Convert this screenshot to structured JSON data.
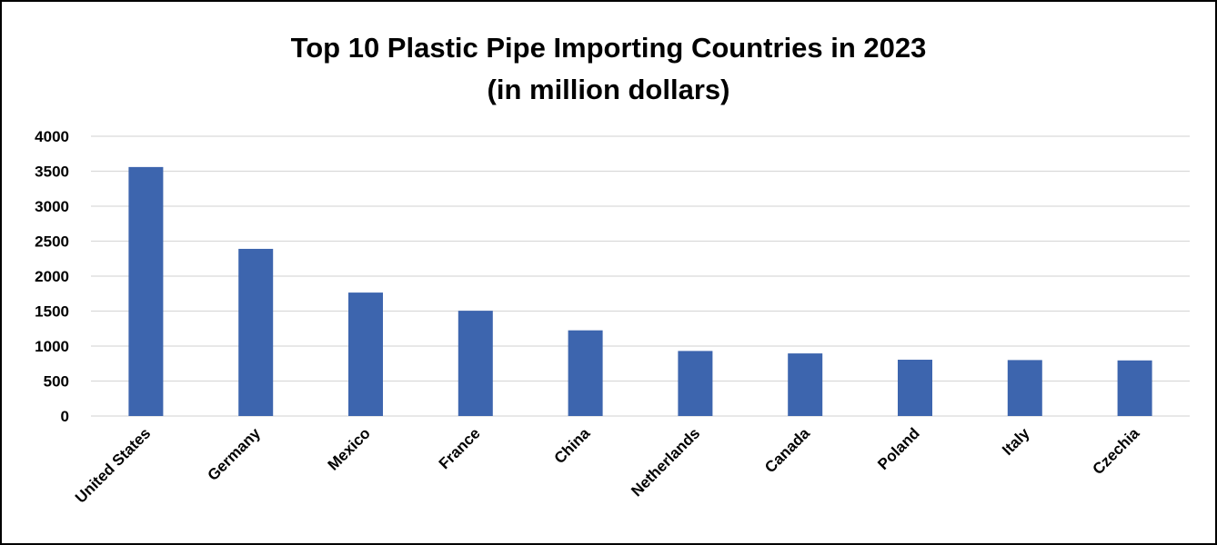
{
  "chart_data": {
    "type": "bar",
    "title": "Top 10 Plastic Pipe Importing Countries in 2023",
    "subtitle": "(in million dollars)",
    "xlabel": "",
    "ylabel": "",
    "categories": [
      "United States",
      "Germany",
      "Mexico",
      "France",
      "China",
      "Netherlands",
      "Canada",
      "Poland",
      "Italy",
      "Czechia"
    ],
    "values": [
      3560,
      2390,
      1765,
      1505,
      1225,
      930,
      895,
      805,
      800,
      795
    ],
    "ylim": [
      0,
      4000
    ],
    "yticks": [
      "0",
      "500",
      "1000",
      "1500",
      "2000",
      "2500",
      "3000",
      "3500",
      "4000"
    ],
    "grid": true,
    "legend": "none",
    "bar_color": "#3d65ae"
  }
}
